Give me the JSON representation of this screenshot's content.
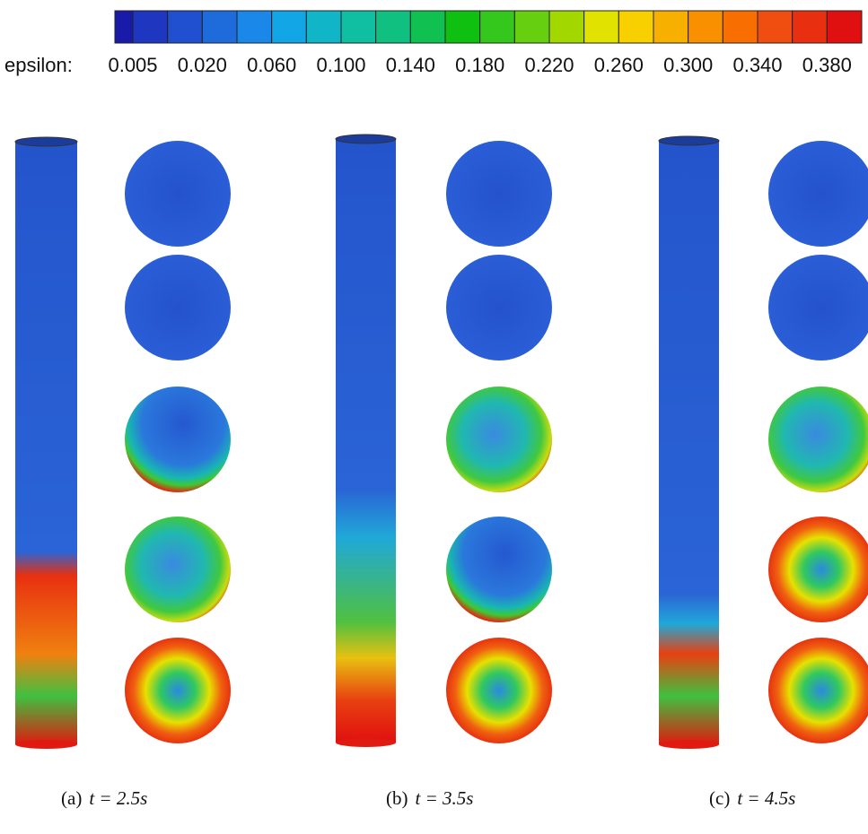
{
  "figure": {
    "colorbar": {
      "label": "epsilon:",
      "ticks": [
        "0.005",
        "0.020",
        "0.060",
        "0.100",
        "0.140",
        "0.180",
        "0.220",
        "0.260",
        "0.300",
        "0.340",
        "0.380"
      ],
      "colors": [
        "#1a1aa8",
        "#1f36c0",
        "#204fd0",
        "#1e6cdc",
        "#1a88e8",
        "#13a6e6",
        "#10b6c8",
        "#10bea2",
        "#10c080",
        "#10c050",
        "#10c010",
        "#34c81c",
        "#66d010",
        "#a2d800",
        "#e2e200",
        "#f8d000",
        "#f8b000",
        "#f89000",
        "#f86e00",
        "#f04e10",
        "#e83010",
        "#e01010"
      ]
    },
    "panels": [
      {
        "label": "(a)",
        "caption": "t = 2.5s"
      },
      {
        "label": "(b)",
        "caption": "t = 3.5s"
      },
      {
        "label": "(c)",
        "caption": "t = 4.5s"
      }
    ]
  }
}
